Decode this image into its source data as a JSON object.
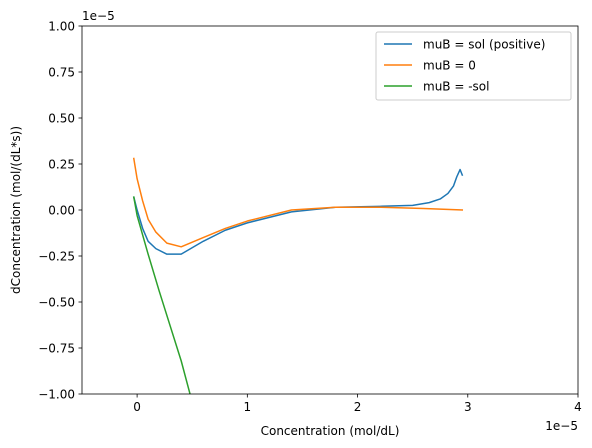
{
  "chart_data": {
    "type": "line",
    "xlabel": "Concentration (mol/dL)",
    "ylabel": "dConcentration (mol/(dL*s))",
    "x_offset_label": "1e−5",
    "y_offset_label": "1e−5",
    "xlim": [
      -0.5,
      4.0
    ],
    "ylim": [
      -1.0,
      1.0
    ],
    "xticks": [
      0,
      1,
      2,
      3,
      4
    ],
    "xtick_labels": [
      "0",
      "1",
      "2",
      "3",
      "4"
    ],
    "yticks": [
      -1.0,
      -0.75,
      -0.5,
      -0.25,
      0.0,
      0.25,
      0.5,
      0.75,
      1.0
    ],
    "ytick_labels": [
      "−1.00",
      "−0.75",
      "−0.50",
      "−0.25",
      "0.00",
      "0.25",
      "0.50",
      "0.75",
      "1.00"
    ],
    "grid": false,
    "legend_position": "top-right",
    "series": [
      {
        "name": "muB = sol (positive)",
        "color": "#1f77b4",
        "x": [
          -0.03,
          0.0,
          0.05,
          0.1,
          0.17,
          0.27,
          0.4,
          0.6,
          0.8,
          1.0,
          1.4,
          1.8,
          2.2,
          2.5,
          2.65,
          2.75,
          2.82,
          2.87,
          2.9,
          2.93,
          2.95
        ],
        "y": [
          0.07,
          0.0,
          -0.1,
          -0.17,
          -0.21,
          -0.24,
          -0.24,
          -0.17,
          -0.11,
          -0.07,
          -0.01,
          0.015,
          0.02,
          0.025,
          0.04,
          0.06,
          0.09,
          0.13,
          0.18,
          0.22,
          0.19
        ]
      },
      {
        "name": "muB = 0",
        "color": "#ff7f0e",
        "x": [
          -0.03,
          0.0,
          0.05,
          0.1,
          0.17,
          0.27,
          0.4,
          0.6,
          0.8,
          1.0,
          1.4,
          1.8,
          2.2,
          2.6,
          2.95
        ],
        "y": [
          0.28,
          0.17,
          0.05,
          -0.05,
          -0.12,
          -0.18,
          -0.2,
          -0.15,
          -0.1,
          -0.06,
          0.0,
          0.015,
          0.015,
          0.008,
          0.0
        ]
      },
      {
        "name": "muB = -sol",
        "color": "#2ca02c",
        "x": [
          -0.03,
          0.0,
          0.1,
          0.2,
          0.3,
          0.4,
          0.48
        ],
        "y": [
          0.07,
          -0.03,
          -0.24,
          -0.44,
          -0.63,
          -0.82,
          -1.0
        ]
      }
    ]
  }
}
